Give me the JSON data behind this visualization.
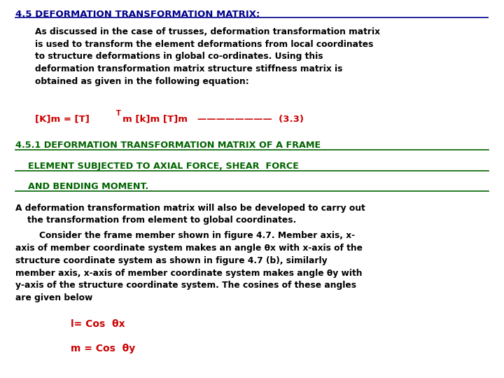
{
  "bg_color": "#ffffff",
  "title_color": "#00008B",
  "body_color": "#000000",
  "red_color": "#cc0000",
  "green_color": "#006400",
  "title1": "4.5 DEFORMATION TRANSFORMATION MATRIX:",
  "para1_l1": "As discussed in the case of trusses, deformation transformation matrix",
  "para1_l2": "is used to transform the element deformations from local coordinates",
  "para1_l3": "to structure deformations in global co-ordinates. Using this",
  "para1_l4": "deformation transformation matrix structure stiffness matrix is",
  "para1_l5": "obtained as given in the following equation:",
  "eq_part1": "[K]m = [T]",
  "eq_sup": "T",
  "eq_part2": "m [k]m [T]m   ————————  (3.3)",
  "title2_l1": "4.5.1 DEFORMATION TRANSFORMATION MATRIX OF A FRAME",
  "title2_l2": "    ELEMENT SUBJECTED TO AXIAL FORCE, SHEAR  FORCE",
  "title2_l3": "    AND BENDING MOMENT.",
  "para2": "A deformation transformation matrix will also be developed to carry out\n    the transformation from element to global coordinates.",
  "para3": "        Consider the frame member shown in figure 4.7. Member axis, x-\naxis of member coordinate system makes an angle θx with x-axis of the\nstructure coordinate system as shown in figure 4.7 (b), similarly\nmember axis, x-axis of member coordinate system makes angle θy with\ny-axis of the structure coordinate system. The cosines of these angles\nare given below",
  "eq1": "l= Cos  θx",
  "eq2": "m = Cos  θy"
}
